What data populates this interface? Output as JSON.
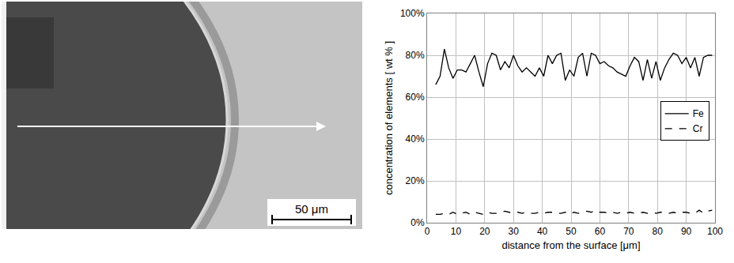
{
  "image": {
    "scale_bar": "50 μm"
  },
  "chart_data": {
    "type": "line",
    "xlabel": "distance from the surface [μm]",
    "ylabel": "concentration of elements [ wt % ]",
    "x": [
      3,
      4.5,
      6,
      7.5,
      9,
      10.5,
      12,
      13.5,
      15,
      16.5,
      18,
      19.5,
      21,
      22.5,
      24,
      25.5,
      27,
      28.5,
      30,
      31.5,
      33,
      34.5,
      36,
      37.5,
      39,
      40.5,
      42,
      43.5,
      45,
      46.5,
      48,
      49.5,
      51,
      52.5,
      54,
      55.5,
      57,
      58.5,
      60,
      61.5,
      63,
      64.5,
      66,
      67.5,
      69,
      70.5,
      72,
      73.5,
      75,
      76.5,
      78,
      79.5,
      81,
      82.5,
      84,
      85.5,
      87,
      88.5,
      90,
      91.5,
      93,
      94.5,
      96,
      97.5,
      99
    ],
    "series": [
      {
        "name": "Fe",
        "color": "#000000",
        "line_style": "solid",
        "values": [
          66,
          70,
          83,
          74,
          69,
          73,
          73,
          72,
          76,
          80,
          72,
          65,
          76,
          81,
          80,
          73,
          77,
          74,
          80,
          75,
          72,
          74,
          72,
          70,
          74,
          70,
          80,
          76,
          80,
          81,
          68,
          73,
          70,
          79,
          81,
          70,
          81,
          80,
          76,
          77,
          75,
          74,
          72,
          71,
          70,
          75,
          79,
          77,
          68,
          78,
          69,
          77,
          68,
          74,
          78,
          81,
          80,
          76,
          79,
          74,
          79,
          70,
          79,
          80,
          80
        ]
      },
      {
        "name": "Cr",
        "color": "#000000",
        "line_style": "dash",
        "values": [
          4,
          4,
          4.5,
          4,
          5,
          4,
          4.5,
          5,
          4,
          5,
          4.5,
          4,
          5,
          4.5,
          4.5,
          5,
          5.5,
          5,
          4.5,
          5,
          4.5,
          5,
          4.5,
          4.5,
          5,
          4.5,
          5,
          5,
          4.5,
          4.5,
          5,
          4,
          5,
          4.5,
          5,
          5.5,
          5,
          6,
          5,
          5,
          4.5,
          5,
          4.5,
          5,
          4.5,
          5,
          4.5,
          4.5,
          5,
          4.5,
          5,
          4.5,
          5,
          5,
          4.5,
          5,
          4.5,
          5,
          5,
          4.5,
          4.5,
          6,
          4.5,
          5.5,
          6
        ]
      }
    ],
    "xlim": [
      0,
      100
    ],
    "xticks": [
      0,
      10,
      20,
      30,
      40,
      50,
      60,
      70,
      80,
      90,
      100
    ],
    "ylim": [
      0,
      100
    ],
    "yticks": [
      {
        "value": 0,
        "label": "0%"
      },
      {
        "value": 20,
        "label": "20%"
      },
      {
        "value": 40,
        "label": "40%"
      },
      {
        "value": 60,
        "label": "60%"
      },
      {
        "value": 80,
        "label": "80%"
      },
      {
        "value": 100,
        "label": "100%"
      }
    ],
    "grid": true,
    "legend": "right"
  }
}
